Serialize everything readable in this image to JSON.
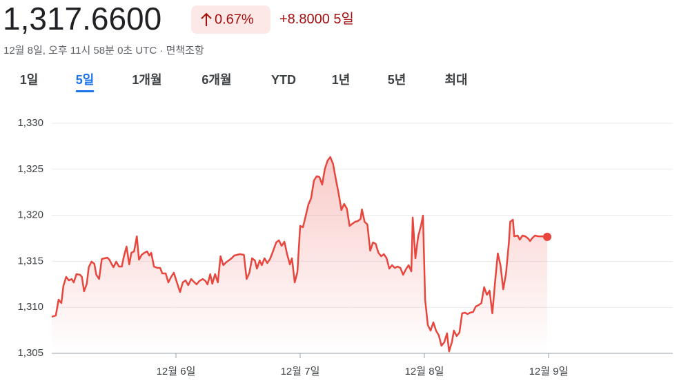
{
  "header": {
    "price": "1,317.6600",
    "change_percent": "0.67%",
    "change": "+8.8000",
    "period": "5일",
    "timestamp": "12월 8일, 오후 11시 58분 0초 UTC · ",
    "disclaimer": "면책조항"
  },
  "tabs": {
    "items": [
      "1일",
      "5일",
      "1개월",
      "6개월",
      "YTD",
      "1년",
      "5년",
      "최대"
    ],
    "selected": 1
  },
  "chart_data": {
    "type": "line",
    "color": "#e8453c",
    "x": [
      5.0,
      5.033,
      5.055,
      5.077,
      5.094,
      5.116,
      5.138,
      5.16,
      5.177,
      5.199,
      5.227,
      5.243,
      5.26,
      5.282,
      5.298,
      5.32,
      5.343,
      5.359,
      5.381,
      5.403,
      5.425,
      5.448,
      5.464,
      5.481,
      5.497,
      5.519,
      5.541,
      5.564,
      5.58,
      5.602,
      5.624,
      5.641,
      5.663,
      5.685,
      5.702,
      5.724,
      5.746,
      5.768,
      5.785,
      5.801,
      5.823,
      5.851,
      5.873,
      5.89,
      5.917,
      5.939,
      5.961,
      5.983,
      6.011,
      6.033,
      6.055,
      6.077,
      6.099,
      6.122,
      6.144,
      6.166,
      6.188,
      6.216,
      6.238,
      6.254,
      6.276,
      6.293,
      6.315,
      6.337,
      6.359,
      6.381,
      6.403,
      6.425,
      6.448,
      6.47,
      6.492,
      6.514,
      6.547,
      6.569,
      6.591,
      6.613,
      6.635,
      6.652,
      6.674,
      6.691,
      6.713,
      6.735,
      6.757,
      6.779,
      6.807,
      6.829,
      6.851,
      6.873,
      6.895,
      6.917,
      6.934,
      6.956,
      6.978,
      7.0,
      7.022,
      7.044,
      7.066,
      7.088,
      7.111,
      7.133,
      7.155,
      7.177,
      7.199,
      7.221,
      7.243,
      7.265,
      7.287,
      7.309,
      7.332,
      7.354,
      7.376,
      7.398,
      7.42,
      7.442,
      7.464,
      7.486,
      7.497,
      7.519,
      7.541,
      7.564,
      7.586,
      7.608,
      7.63,
      7.652,
      7.674,
      7.696,
      7.718,
      7.74,
      7.762,
      7.785,
      7.807,
      7.829,
      7.851,
      7.873,
      7.895,
      7.906,
      7.928,
      7.95,
      7.972,
      7.989,
      8.006,
      8.028,
      8.05,
      8.072,
      8.094,
      8.116,
      8.138,
      8.16,
      8.182,
      8.199,
      8.221,
      8.238,
      8.26,
      8.282,
      8.304,
      8.326,
      8.348,
      8.37,
      8.392,
      8.414,
      8.436,
      8.459,
      8.481,
      8.503,
      8.525,
      8.547,
      8.569,
      8.591,
      8.613,
      8.635,
      8.657,
      8.68,
      8.691,
      8.713,
      8.724,
      8.751,
      8.768,
      8.79,
      8.812,
      8.834,
      8.851,
      8.867,
      8.89,
      8.917,
      8.945,
      8.989
    ],
    "values": [
      1308.97,
      1309.12,
      1310.84,
      1310.46,
      1312.34,
      1313.31,
      1312.93,
      1313.08,
      1312.71,
      1313.61,
      1313.53,
      1313.31,
      1311.74,
      1312.56,
      1314.36,
      1314.96,
      1314.73,
      1313.53,
      1313.08,
      1315.25,
      1315.33,
      1315.4,
      1315.18,
      1314.73,
      1314.36,
      1314.96,
      1314.43,
      1314.43,
      1315.48,
      1316.6,
      1314.66,
      1315.93,
      1316.08,
      1317.72,
      1315.18,
      1315.7,
      1315.93,
      1316.08,
      1315.63,
      1315.93,
      1314.43,
      1314.28,
      1314.28,
      1313.68,
      1313.68,
      1312.71,
      1313.31,
      1313.76,
      1312.56,
      1311.66,
      1312.71,
      1312.93,
      1312.41,
      1313.08,
      1312.78,
      1312.49,
      1312.86,
      1313.08,
      1312.86,
      1312.49,
      1313.61,
      1312.56,
      1313.61,
      1312.71,
      1315.55,
      1314.58,
      1314.88,
      1315.1,
      1315.33,
      1315.63,
      1315.7,
      1315.78,
      1315.7,
      1313.08,
      1313.76,
      1315.33,
      1315.1,
      1314.21,
      1315.1,
      1314.58,
      1315.33,
      1314.81,
      1315.25,
      1316.0,
      1317.05,
      1317.28,
      1316.68,
      1317.13,
      1315.78,
      1314.66,
      1315.33,
      1312.71,
      1313.83,
      1318.85,
      1318.7,
      1319.9,
      1321.17,
      1321.84,
      1323.79,
      1324.24,
      1324.16,
      1323.34,
      1325.06,
      1325.96,
      1326.33,
      1325.58,
      1323.94,
      1322.44,
      1320.57,
      1321.24,
      1320.72,
      1318.85,
      1319.07,
      1319.3,
      1319.37,
      1319.6,
      1320.64,
      1319.3,
      1319.0,
      1316.15,
      1317.05,
      1316.9,
      1315.93,
      1315.55,
      1315.78,
      1315.33,
      1314.21,
      1314.58,
      1314.28,
      1314.43,
      1314.28,
      1313.53,
      1314.13,
      1314.58,
      1313.91,
      1319.75,
      1315.33,
      1317.72,
      1318.85,
      1319.97,
      1310.84,
      1308.07,
      1307.47,
      1308.37,
      1307.47,
      1306.95,
      1305.82,
      1306.2,
      1307.17,
      1305.22,
      1306.2,
      1307.47,
      1306.87,
      1307.25,
      1309.34,
      1309.42,
      1309.27,
      1309.42,
      1309.49,
      1310.09,
      1310.24,
      1310.46,
      1312.19,
      1311.36,
      1311.81,
      1309.34,
      1312.71,
      1315.85,
      1314.58,
      1311.96,
      1313.68,
      1316.98,
      1319.3,
      1319.52,
      1317.72,
      1317.8,
      1317.35,
      1317.8,
      1317.72,
      1317.5,
      1317.2,
      1317.5,
      1317.8,
      1317.72,
      1317.72,
      1317.66
    ],
    "xlim": [
      5,
      10
    ],
    "xticks": [
      {
        "value": 6,
        "label": "12월 6일"
      },
      {
        "value": 7,
        "label": "12월 7일"
      },
      {
        "value": 8,
        "label": "12월 8일"
      },
      {
        "value": 9,
        "label": "12월 9일"
      }
    ],
    "ylim": [
      1305,
      1330
    ],
    "yticks": [
      {
        "value": 1305,
        "label": "1,305"
      },
      {
        "value": 1310,
        "label": "1,310"
      },
      {
        "value": 1315,
        "label": "1,315"
      },
      {
        "value": 1320,
        "label": "1,320"
      },
      {
        "value": 1325,
        "label": "1,325"
      },
      {
        "value": 1330,
        "label": "1,330"
      }
    ],
    "grid": true
  }
}
